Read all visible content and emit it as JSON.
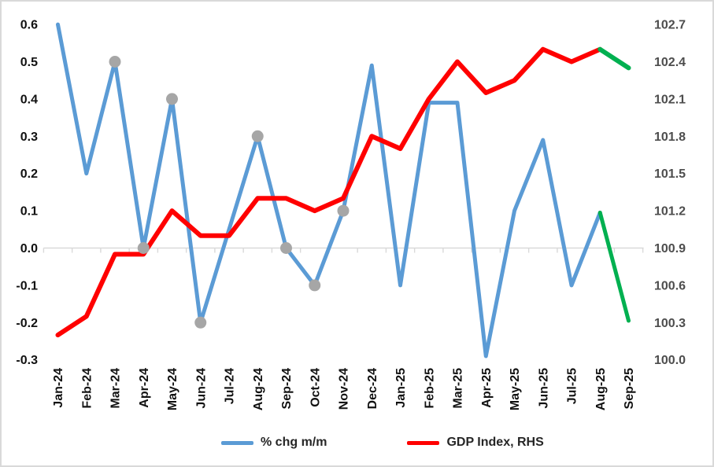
{
  "chart_data": {
    "type": "line",
    "title": "",
    "categories": [
      "Jan-24",
      "Feb-24",
      "Mar-24",
      "Apr-24",
      "May-24",
      "Jun-24",
      "Jul-24",
      "Aug-24",
      "Sep-24",
      "Oct-24",
      "Nov-24",
      "Dec-24",
      "Jan-25",
      "Feb-25",
      "Mar-25",
      "Apr-25",
      "May-25",
      "Jun-25",
      "Jul-25",
      "Aug-25",
      "Sep-25"
    ],
    "series": [
      {
        "name": "% chg m/m",
        "axis": "left",
        "color": "#5B9BD5",
        "stroke_width": 5,
        "values": [
          0.6,
          0.2,
          0.5,
          0.0,
          0.4,
          -0.2,
          0.05,
          0.3,
          0.0,
          -0.1,
          0.1,
          0.49,
          -0.1,
          0.39,
          0.39,
          -0.29,
          0.1,
          0.29,
          -0.1,
          0.095,
          -0.195
        ],
        "marker_indices": [
          2,
          3,
          4,
          5,
          7,
          8,
          9,
          10
        ],
        "marker_color": "#A6A6A6",
        "final_segment_color": "#00B050"
      },
      {
        "name": "GDP Index, RHS",
        "axis": "right",
        "color": "#FF0000",
        "stroke_width": 6,
        "values": [
          100.2,
          100.35,
          100.85,
          100.85,
          101.2,
          101.0,
          101.0,
          101.3,
          101.3,
          101.2,
          101.3,
          101.8,
          101.7,
          102.1,
          102.4,
          102.15,
          102.25,
          102.5,
          102.4,
          102.5,
          102.35
        ],
        "marker_indices": [],
        "marker_color": null,
        "final_segment_color": "#00B050"
      }
    ],
    "left_axis": {
      "tick_labels": [
        "0.6",
        "0.5",
        "0.4",
        "0.3",
        "0.2",
        "0.1",
        "0.0",
        "-0.1",
        "-0.2",
        "-0.3"
      ],
      "min": -0.3,
      "max": 0.6,
      "text_color": "#111111"
    },
    "right_axis": {
      "tick_labels": [
        "102.7",
        "102.4",
        "102.1",
        "101.8",
        "101.5",
        "101.2",
        "100.9",
        "100.6",
        "100.3",
        "100.0"
      ],
      "min": 100.0,
      "max": 102.7,
      "text_color": "#4d4d4d"
    },
    "x_axis": {
      "text_color": "#111111",
      "axis_line_color": "#D9D9D9"
    },
    "grid": "category-axis-at-zero-only",
    "legend_position": "bottom-center",
    "legend": [
      {
        "label": "% chg m/m",
        "color": "#5B9BD5"
      },
      {
        "label": "GDP Index, RHS",
        "color": "#FF0000"
      }
    ]
  }
}
